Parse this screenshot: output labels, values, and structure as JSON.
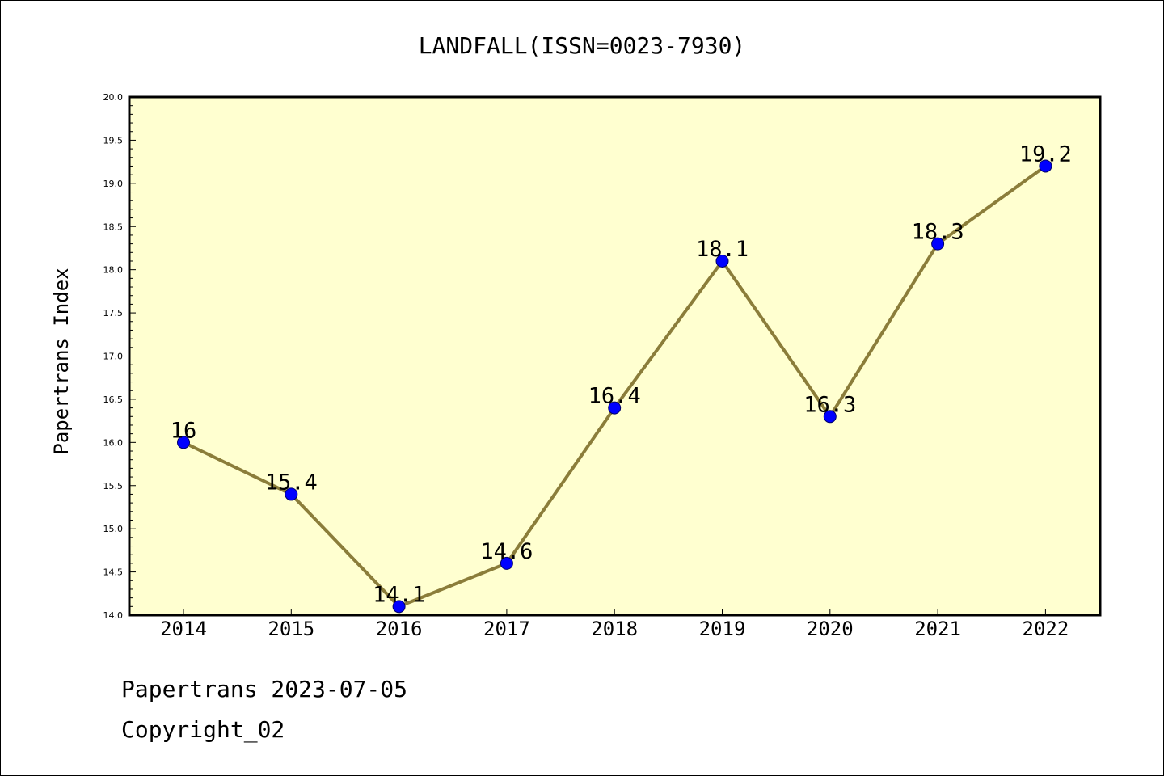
{
  "chart_data": {
    "type": "line",
    "title": "LANDFALL(ISSN=0023-7930)",
    "xlabel": "",
    "ylabel": "Papertrans Index",
    "categories": [
      "2014",
      "2015",
      "2016",
      "2017",
      "2018",
      "2019",
      "2020",
      "2021",
      "2022"
    ],
    "series": [
      {
        "values": [
          16,
          15.4,
          14.1,
          14.6,
          16.4,
          18.1,
          16.3,
          18.3,
          19.2
        ],
        "data_labels": [
          "16",
          "15.4",
          "14.1",
          "14.6",
          "16.4",
          "18.1",
          "16.3",
          "18.3",
          "19.2"
        ]
      }
    ],
    "ylim": [
      14.0,
      20.0
    ],
    "yticks": [
      "14.0",
      "14.5",
      "15.0",
      "15.5",
      "16.0",
      "16.5",
      "17.0",
      "17.5",
      "18.0",
      "18.5",
      "19.0",
      "19.5",
      "20.0"
    ],
    "grid": false,
    "colors": {
      "line": "#8b7d3a",
      "marker": "#0000ff",
      "plot_background": "#ffffd0"
    }
  },
  "footer": {
    "line1": "Papertrans 2023-07-05",
    "line2": "Copyright_02"
  }
}
